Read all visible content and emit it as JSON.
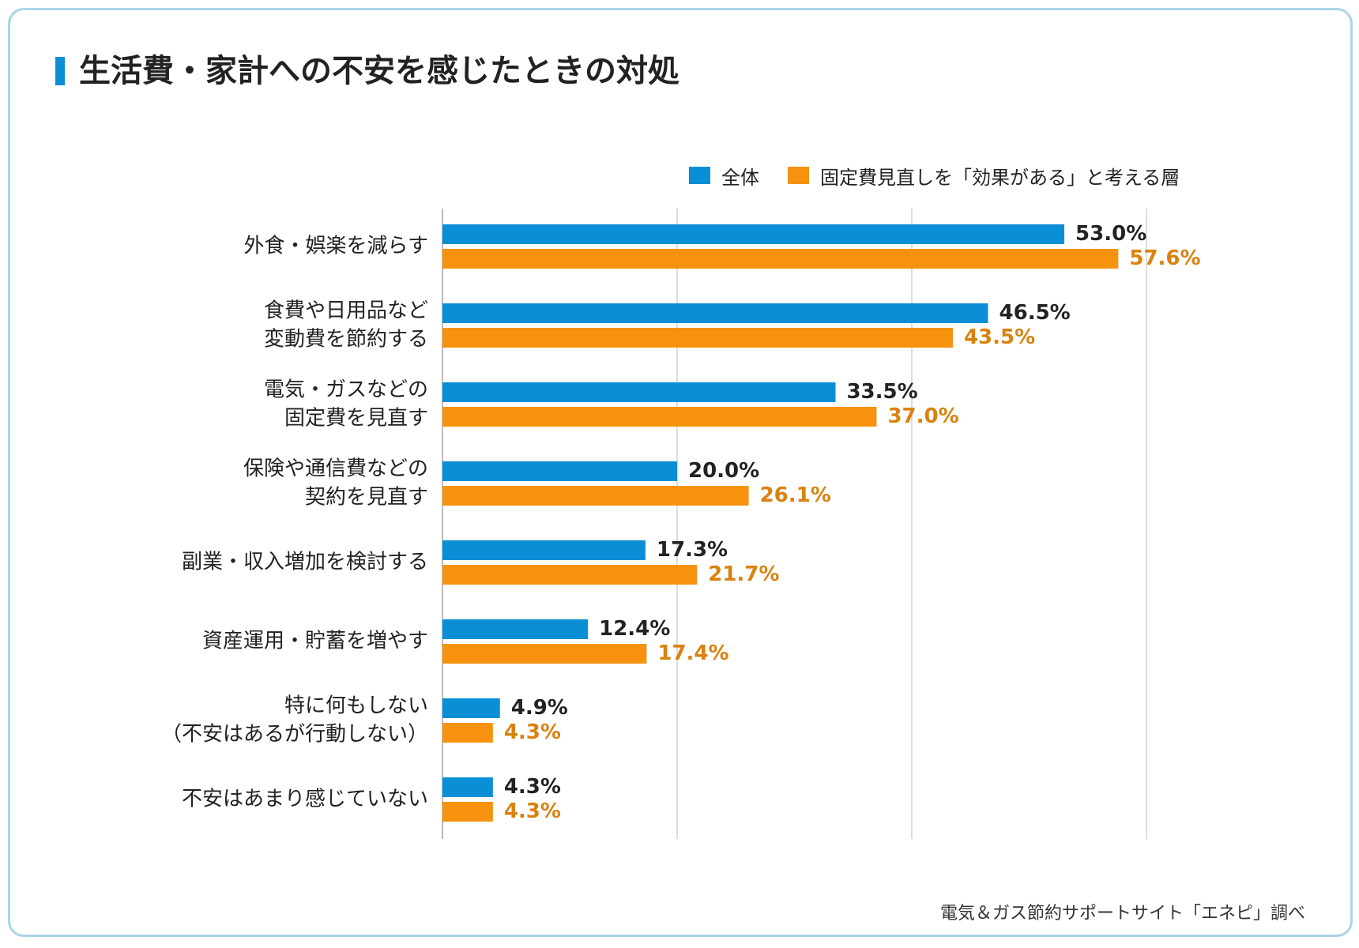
{
  "title": "生活費・家計への不安を感じたときの対処",
  "source": "電気＆ガス節約サポートサイト「エネピ」調べ",
  "colors": {
    "accent": "#0a8fd6",
    "series_all": "#0a8fd6",
    "series_fixed": "#f7920f",
    "label_all": "#222222",
    "label_fixed": "#d9820f",
    "grid": "#dddddd",
    "axis": "#bbbbbb",
    "border": "#a9d4e8"
  },
  "chart_data": {
    "type": "bar",
    "orientation": "horizontal",
    "categories": [
      [
        "外食・娯楽を減らす"
      ],
      [
        "食費や日用品など",
        "変動費を節約する"
      ],
      [
        "電気・ガスなどの",
        "固定費を見直す"
      ],
      [
        "保険や通信費などの",
        "契約を見直す"
      ],
      [
        "副業・収入増加を検討する"
      ],
      [
        "資産運用・貯蓄を増やす"
      ],
      [
        "特に何もしない",
        "（不安はあるが行動しない）"
      ],
      [
        "不安はあまり感じていない"
      ]
    ],
    "series": [
      {
        "name": "全体",
        "values": [
          53.0,
          46.5,
          33.5,
          20.0,
          17.3,
          12.4,
          4.9,
          4.3
        ],
        "labels": [
          "53.0%",
          "46.5%",
          "33.5%",
          "20.0%",
          "17.3%",
          "12.4%",
          "4.9%",
          "4.3%"
        ]
      },
      {
        "name": "固定費見直しを「効果がある」と考える層",
        "values": [
          57.6,
          43.5,
          37.0,
          26.1,
          21.7,
          17.4,
          4.3,
          4.3
        ],
        "labels": [
          "57.6%",
          "43.5%",
          "37.0%",
          "26.1%",
          "21.7%",
          "17.4%",
          "4.3%",
          "4.3%"
        ]
      }
    ],
    "xlim": [
      0,
      60
    ],
    "gridlines": [
      20,
      40,
      60
    ],
    "grid": true,
    "tick_labels_shown": false,
    "legend_position": "top-right"
  }
}
